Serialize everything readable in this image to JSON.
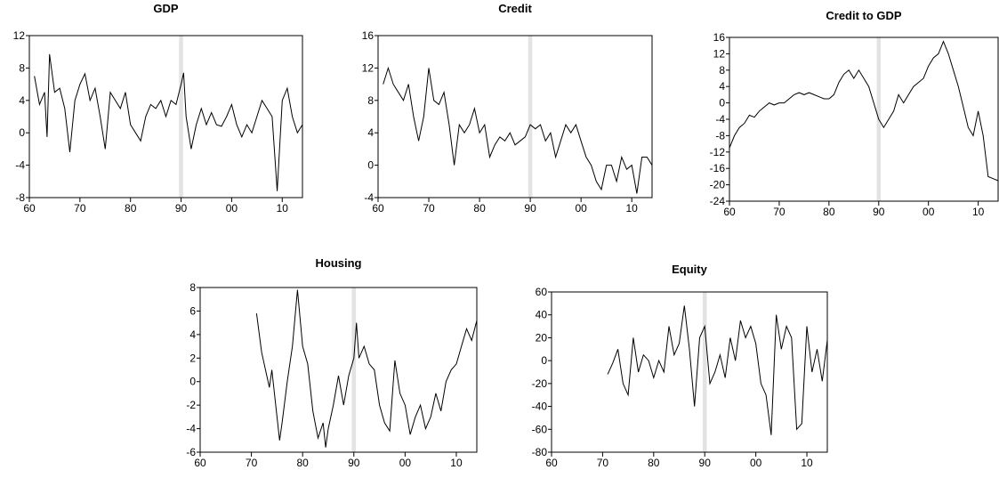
{
  "chart_data": [
    {
      "type": "line",
      "title": "GDP",
      "x": [
        1961,
        1962,
        1963,
        1963.5,
        1964,
        1965,
        1966,
        1967,
        1968,
        1969,
        1970,
        1971,
        1972,
        1973,
        1974,
        1975,
        1976,
        1977,
        1978,
        1979,
        1980,
        1981,
        1982,
        1983,
        1984,
        1985,
        1986,
        1987,
        1988,
        1989,
        1990,
        1990.5,
        1991,
        1992,
        1993,
        1994,
        1995,
        1996,
        1997,
        1998,
        1999,
        2000,
        2001,
        2002,
        2003,
        2004,
        2005,
        2006,
        2007,
        2008,
        2009,
        2010,
        2011,
        2012,
        2013,
        2014
      ],
      "series": [
        {
          "color": "#000000",
          "values": [
            7,
            3.5,
            5,
            -0.5,
            9.7,
            5,
            5.5,
            3,
            -2.4,
            4,
            6,
            7.3,
            4,
            5.5,
            2,
            -2,
            5,
            4,
            3,
            5,
            1,
            0,
            -1,
            2,
            3.5,
            3,
            4,
            2,
            4,
            3.5,
            6,
            7.4,
            2,
            -2,
            1,
            3,
            1,
            2.5,
            1,
            0.8,
            2,
            3.5,
            1,
            -0.5,
            1,
            0,
            2,
            4,
            3,
            2,
            -7.2,
            4,
            5.5,
            2,
            0,
            1
          ]
        }
      ],
      "xlim": [
        1960,
        2014
      ],
      "ylim": [
        -8,
        12
      ],
      "xticks": [
        {
          "value": 1960,
          "label": "60"
        },
        {
          "value": 1970,
          "label": "70"
        },
        {
          "value": 1980,
          "label": "80"
        },
        {
          "value": 1990,
          "label": "90"
        },
        {
          "value": 2000,
          "label": "00"
        },
        {
          "value": 2010,
          "label": "10"
        }
      ],
      "yticks": [
        -8,
        -4,
        0,
        4,
        8,
        12
      ],
      "shade": [
        1989.6,
        1990.4
      ]
    },
    {
      "type": "line",
      "title": "Credit",
      "x": [
        1961,
        1962,
        1963,
        1964,
        1965,
        1966,
        1967,
        1968,
        1969,
        1970,
        1971,
        1972,
        1973,
        1974,
        1975,
        1976,
        1977,
        1978,
        1979,
        1980,
        1981,
        1982,
        1983,
        1984,
        1985,
        1986,
        1987,
        1988,
        1989,
        1990,
        1991,
        1992,
        1993,
        1994,
        1995,
        1996,
        1997,
        1998,
        1999,
        2000,
        2001,
        2002,
        2003,
        2004,
        2005,
        2006,
        2007,
        2008,
        2009,
        2010,
        2011,
        2012,
        2013,
        2014
      ],
      "series": [
        {
          "color": "#000000",
          "values": [
            10,
            12,
            10,
            9,
            8,
            10,
            6,
            3,
            6,
            12,
            8,
            7.5,
            9,
            5,
            0,
            5,
            4,
            5,
            7,
            4,
            5,
            1,
            2.5,
            3.5,
            3,
            4,
            2.5,
            3,
            3.5,
            5,
            4.5,
            5,
            3,
            4,
            1,
            3,
            5,
            4,
            5,
            3,
            1,
            0,
            -2,
            -3,
            0,
            0,
            -2,
            1,
            -0.5,
            0,
            -3.5,
            1,
            1,
            0
          ]
        }
      ],
      "xlim": [
        1960,
        2014
      ],
      "ylim": [
        -4,
        16
      ],
      "xticks": [
        {
          "value": 1960,
          "label": "60"
        },
        {
          "value": 1970,
          "label": "70"
        },
        {
          "value": 1980,
          "label": "80"
        },
        {
          "value": 1990,
          "label": "90"
        },
        {
          "value": 2000,
          "label": "00"
        },
        {
          "value": 2010,
          "label": "10"
        }
      ],
      "yticks": [
        -4,
        0,
        4,
        8,
        12,
        16
      ],
      "shade": [
        1989.6,
        1990.4
      ]
    },
    {
      "type": "line",
      "title": "Credit to GDP",
      "x": [
        1960,
        1961,
        1962,
        1963,
        1964,
        1965,
        1966,
        1967,
        1968,
        1969,
        1970,
        1971,
        1972,
        1973,
        1974,
        1975,
        1976,
        1977,
        1978,
        1979,
        1980,
        1981,
        1982,
        1983,
        1984,
        1985,
        1986,
        1987,
        1988,
        1989,
        1990,
        1991,
        1992,
        1993,
        1994,
        1995,
        1996,
        1997,
        1998,
        1999,
        2000,
        2001,
        2002,
        2003,
        2004,
        2005,
        2006,
        2007,
        2008,
        2009,
        2010,
        2011,
        2012,
        2013,
        2014
      ],
      "series": [
        {
          "color": "#000000",
          "values": [
            -11,
            -8,
            -6,
            -5,
            -3,
            -3.5,
            -2,
            -1,
            0,
            -0.5,
            0,
            0,
            1,
            2,
            2.5,
            2,
            2.5,
            2,
            1.5,
            1,
            1,
            2,
            5,
            7,
            8,
            6,
            8,
            6,
            4,
            0,
            -4,
            -6,
            -4,
            -2,
            2,
            0,
            2,
            4,
            5,
            6,
            9,
            11,
            12,
            15,
            12,
            8,
            4,
            -1,
            -6,
            -8,
            -2,
            -8,
            -18,
            -18.5,
            -19
          ]
        }
      ],
      "xlim": [
        1960,
        2014
      ],
      "ylim": [
        -24,
        16
      ],
      "xticks": [
        {
          "value": 1960,
          "label": "60"
        },
        {
          "value": 1970,
          "label": "70"
        },
        {
          "value": 1980,
          "label": "80"
        },
        {
          "value": 1990,
          "label": "90"
        },
        {
          "value": 2000,
          "label": "00"
        },
        {
          "value": 2010,
          "label": "10"
        }
      ],
      "yticks": [
        -24,
        -20,
        -16,
        -12,
        -8,
        -4,
        0,
        4,
        8,
        12,
        16
      ],
      "shade": [
        1989.6,
        1990.4
      ]
    },
    {
      "type": "line",
      "title": "Housing",
      "x": [
        1971,
        1972,
        1973,
        1973.5,
        1974,
        1975,
        1975.5,
        1976,
        1977,
        1978,
        1979,
        1980,
        1981,
        1982,
        1983,
        1984,
        1984.5,
        1985,
        1986,
        1987,
        1988,
        1989,
        1990,
        1990.5,
        1991,
        1992,
        1993,
        1994,
        1995,
        1996,
        1997,
        1998,
        1999,
        2000,
        2001,
        2002,
        2003,
        2004,
        2005,
        2006,
        2007,
        2008,
        2009,
        2010,
        2011,
        2012,
        2013,
        2014
      ],
      "series": [
        {
          "color": "#000000",
          "values": [
            5.8,
            2.5,
            0.5,
            -0.5,
            1,
            -3,
            -5,
            -3.5,
            0,
            3,
            7.8,
            3,
            1.5,
            -2.5,
            -4.8,
            -3.5,
            -5.6,
            -4,
            -2,
            0.5,
            -2,
            0.5,
            2,
            5,
            2,
            3,
            1.5,
            1,
            -2,
            -3.5,
            -4.2,
            1.8,
            -1,
            -2,
            -4.5,
            -3,
            -2,
            -4,
            -3,
            -1,
            -2.5,
            0,
            1,
            1.5,
            3,
            4.5,
            3.5,
            5.2
          ]
        }
      ],
      "xlim": [
        1960,
        2014
      ],
      "ylim": [
        -6,
        8
      ],
      "xticks": [
        {
          "value": 1960,
          "label": "60"
        },
        {
          "value": 1970,
          "label": "70"
        },
        {
          "value": 1980,
          "label": "80"
        },
        {
          "value": 1990,
          "label": "90"
        },
        {
          "value": 2000,
          "label": "00"
        },
        {
          "value": 2010,
          "label": "10"
        }
      ],
      "yticks": [
        -6,
        -4,
        -2,
        0,
        2,
        4,
        6,
        8
      ],
      "shade": [
        1989.6,
        1990.4
      ]
    },
    {
      "type": "line",
      "title": "Equity",
      "x": [
        1971,
        1972,
        1973,
        1974,
        1975,
        1976,
        1977,
        1978,
        1979,
        1980,
        1981,
        1982,
        1983,
        1984,
        1985,
        1986,
        1987,
        1988,
        1989,
        1990,
        1991,
        1992,
        1993,
        1994,
        1995,
        1996,
        1997,
        1998,
        1999,
        2000,
        2001,
        2002,
        2003,
        2004,
        2005,
        2006,
        2007,
        2008,
        2009,
        2010,
        2011,
        2012,
        2013,
        2014
      ],
      "series": [
        {
          "color": "#000000",
          "values": [
            -12,
            -2,
            10,
            -20,
            -30,
            20,
            -10,
            5,
            0,
            -15,
            0,
            -10,
            30,
            5,
            15,
            48,
            10,
            -40,
            20,
            30,
            -20,
            -10,
            5,
            -15,
            20,
            0,
            35,
            20,
            30,
            15,
            -20,
            -30,
            -65,
            40,
            10,
            30,
            20,
            -60,
            -55,
            30,
            -10,
            10,
            -18,
            18
          ]
        }
      ],
      "xlim": [
        1960,
        2014
      ],
      "ylim": [
        -80,
        60
      ],
      "xticks": [
        {
          "value": 1960,
          "label": "60"
        },
        {
          "value": 1970,
          "label": "70"
        },
        {
          "value": 1980,
          "label": "80"
        },
        {
          "value": 1990,
          "label": "90"
        },
        {
          "value": 2000,
          "label": "00"
        },
        {
          "value": 2010,
          "label": "10"
        }
      ],
      "yticks": [
        -80,
        -60,
        -40,
        -20,
        0,
        20,
        40,
        60
      ],
      "shade": [
        1989.6,
        1990.4
      ]
    }
  ]
}
